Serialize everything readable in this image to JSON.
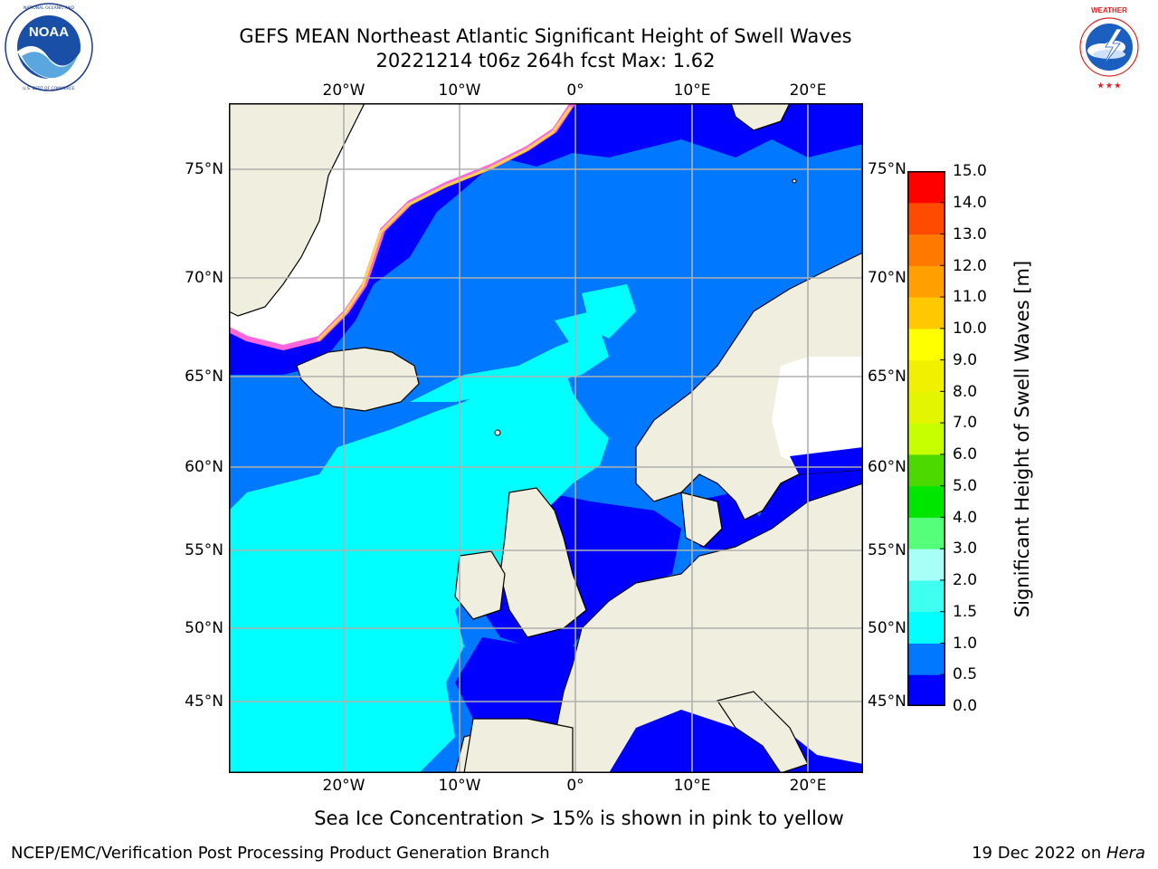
{
  "title": {
    "line1": "GEFS MEAN Northeast Atlantic Significant Height of Swell Waves",
    "line2": "20221214 t06z 264h fcst   Max: 1.62"
  },
  "logos": {
    "left": {
      "name": "noaa-logo",
      "text": "NOAA",
      "ring_text": "NATIONAL OCEANIC AND ATMOSPHERIC ADMINISTRATION · U.S. DEPARTMENT OF COMMERCE"
    },
    "right": {
      "name": "nws-logo",
      "ring_text": "NATIONAL WEATHER SERVICE"
    }
  },
  "map": {
    "lon_labels": [
      "20°W",
      "10°W",
      "0°",
      "10°E",
      "20°E"
    ],
    "lat_labels": [
      "75°N",
      "70°N",
      "65°N",
      "60°N",
      "55°N",
      "50°N",
      "45°N"
    ],
    "land_color": "#efeedf",
    "grid_color": "#b0b0b0"
  },
  "colorbar": {
    "label": "Significant Height of Swell Waves [m]",
    "ticks": [
      "15.0",
      "14.0",
      "13.0",
      "12.0",
      "11.0",
      "10.0",
      "9.0",
      "8.0",
      "7.0",
      "6.0",
      "5.0",
      "4.0",
      "3.0",
      "2.0",
      "1.5",
      "1.0",
      "0.5",
      "0.0"
    ],
    "colors_bottom_to_top": [
      "#0000ff",
      "#0078ff",
      "#00ffff",
      "#3ffff0",
      "#a8fff8",
      "#55ff7a",
      "#00e600",
      "#4cd900",
      "#c8ff00",
      "#e4f500",
      "#f0f000",
      "#ffff00",
      "#ffc800",
      "#ffa000",
      "#ff7800",
      "#ff4b00",
      "#ff0000"
    ]
  },
  "caption": "Sea Ice Concentration > 15% is shown in pink to yellow",
  "footer": {
    "left": "NCEP/EMC/Verification Post Processing Product Generation Branch",
    "right_date": "19 Dec 2022 on ",
    "right_host": "Hera"
  }
}
